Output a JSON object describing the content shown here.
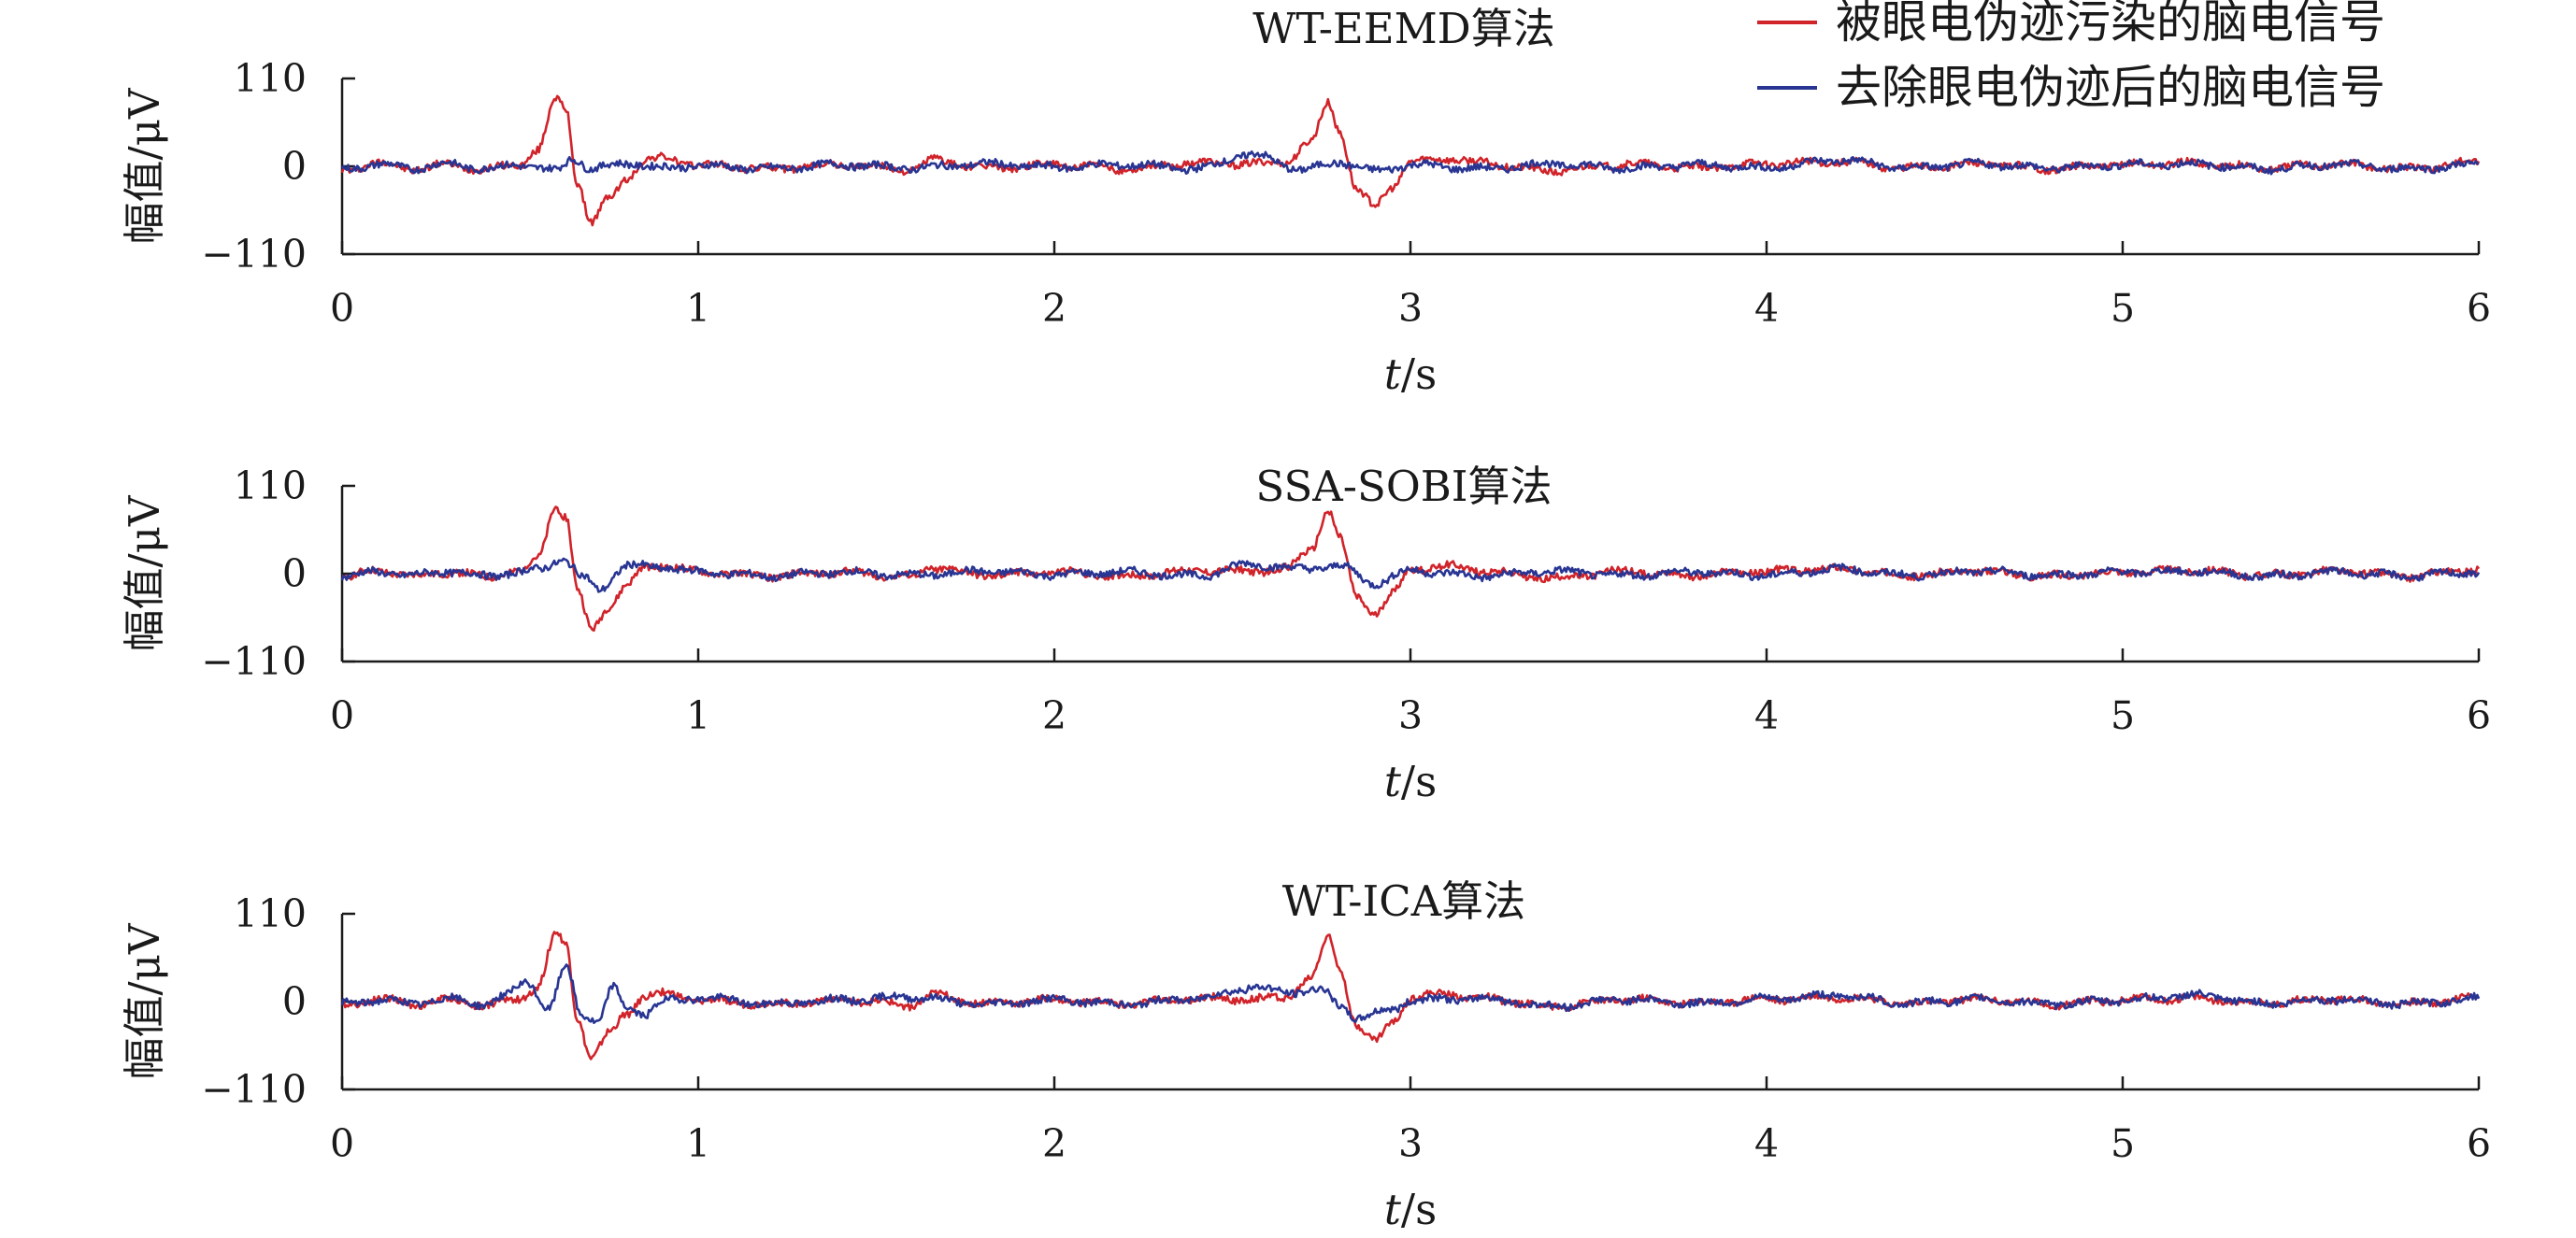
{
  "chart_data": [
    {
      "type": "line",
      "title": "WT-EEMD算法",
      "ylabel": "幅值/μV",
      "xlabel_italic": "t",
      "xlabel_unit": "/s",
      "xlim": [
        0,
        6
      ],
      "ylim": [
        -110,
        110
      ],
      "xticks": [
        "0",
        "1",
        "2",
        "3",
        "4",
        "5",
        "6"
      ],
      "yticks": [
        "110",
        "0",
        "−110"
      ],
      "series": [
        {
          "name": "被眼电伪迹污染的脑电信号",
          "color": "#d1232a",
          "x": [
            0,
            0.1,
            0.2,
            0.3,
            0.4,
            0.5,
            0.55,
            0.6,
            0.63,
            0.66,
            0.7,
            0.75,
            0.8,
            0.85,
            0.9,
            1.0,
            1.2,
            1.4,
            1.6,
            1.66,
            1.8,
            2.0,
            2.2,
            2.4,
            2.56,
            2.65,
            2.72,
            2.77,
            2.8,
            2.85,
            2.9,
            2.95,
            3.0,
            3.1,
            3.2,
            3.4,
            3.6,
            3.8,
            4.0,
            4.2,
            4.4,
            4.6,
            4.8,
            5.0,
            5.2,
            5.4,
            5.6,
            5.8,
            6.0
          ],
          "values": [
            -5,
            4,
            -3,
            2,
            -4,
            3,
            20,
            85,
            70,
            -20,
            -70,
            -40,
            -15,
            8,
            10,
            2,
            -3,
            2,
            -4,
            8,
            -2,
            2,
            -3,
            4,
            3,
            6,
            30,
            80,
            45,
            -30,
            -50,
            -25,
            5,
            10,
            4,
            -6,
            3,
            -2,
            3,
            6,
            -2,
            3,
            -3,
            2,
            4,
            -2,
            3,
            -3,
            5
          ]
        },
        {
          "name": "去除眼电伪迹后的脑电信号",
          "color": "#283593",
          "x": [
            0,
            0.1,
            0.2,
            0.3,
            0.4,
            0.5,
            0.6,
            0.65,
            0.7,
            0.8,
            0.9,
            1.0,
            1.2,
            1.4,
            1.6,
            1.8,
            2.0,
            2.2,
            2.4,
            2.55,
            2.7,
            2.8,
            2.9,
            3.0,
            3.2,
            3.4,
            3.6,
            3.8,
            4.0,
            4.2,
            4.4,
            4.6,
            4.8,
            5.0,
            5.2,
            5.4,
            5.6,
            5.8,
            6.0
          ],
          "values": [
            -3,
            2,
            -2,
            3,
            -3,
            2,
            -5,
            10,
            -3,
            4,
            -2,
            1,
            -3,
            2,
            -2,
            3,
            -1,
            2,
            -3,
            15,
            -4,
            5,
            -6,
            2,
            -3,
            3,
            -2,
            2,
            -2,
            8,
            -2,
            3,
            -2,
            2,
            3,
            -3,
            2,
            -3,
            2
          ]
        }
      ]
    },
    {
      "type": "line",
      "title": "SSA-SOBI算法",
      "ylabel": "幅值/μV",
      "xlabel_italic": "t",
      "xlabel_unit": "/s",
      "xlim": [
        0,
        6
      ],
      "ylim": [
        -110,
        110
      ],
      "xticks": [
        "0",
        "1",
        "2",
        "3",
        "4",
        "5",
        "6"
      ],
      "yticks": [
        "110",
        "0",
        "−110"
      ],
      "series": [
        {
          "name": "被眼电伪迹污染的脑电信号",
          "color": "#d1232a",
          "x": [
            0,
            0.1,
            0.2,
            0.3,
            0.4,
            0.5,
            0.55,
            0.6,
            0.63,
            0.66,
            0.7,
            0.75,
            0.8,
            0.85,
            0.9,
            1.0,
            1.2,
            1.4,
            1.6,
            1.66,
            1.8,
            2.0,
            2.2,
            2.4,
            2.56,
            2.65,
            2.72,
            2.77,
            2.8,
            2.85,
            2.9,
            2.95,
            3.0,
            3.1,
            3.2,
            3.4,
            3.6,
            3.8,
            4.0,
            4.2,
            4.4,
            4.6,
            4.8,
            5.0,
            5.2,
            5.4,
            5.6,
            5.8,
            6.0
          ],
          "values": [
            -5,
            4,
            -3,
            2,
            -4,
            3,
            20,
            85,
            70,
            -20,
            -70,
            -40,
            -15,
            8,
            10,
            2,
            -3,
            2,
            -4,
            8,
            -2,
            2,
            -3,
            4,
            3,
            6,
            30,
            80,
            45,
            -30,
            -50,
            -25,
            5,
            10,
            4,
            -6,
            3,
            -2,
            3,
            6,
            -2,
            3,
            -3,
            2,
            4,
            -2,
            3,
            -3,
            5
          ]
        },
        {
          "name": "去除眼电伪迹后的脑电信号",
          "color": "#283593",
          "x": [
            0,
            0.1,
            0.2,
            0.3,
            0.4,
            0.5,
            0.55,
            0.62,
            0.68,
            0.72,
            0.8,
            0.9,
            1.0,
            1.2,
            1.4,
            1.6,
            1.8,
            2.0,
            2.2,
            2.4,
            2.55,
            2.7,
            2.8,
            2.9,
            3.0,
            3.2,
            3.4,
            3.6,
            3.8,
            4.0,
            4.2,
            4.4,
            4.6,
            4.8,
            5.0,
            5.2,
            5.4,
            5.6,
            5.8,
            6.0
          ],
          "values": [
            -3,
            2,
            -2,
            3,
            -3,
            2,
            5,
            18,
            -5,
            -20,
            10,
            8,
            2,
            -3,
            2,
            -2,
            3,
            -1,
            2,
            -3,
            12,
            6,
            10,
            -12,
            4,
            -3,
            3,
            -2,
            2,
            -2,
            6,
            -2,
            3,
            -2,
            2,
            3,
            -3,
            2,
            -3,
            2
          ]
        }
      ]
    },
    {
      "type": "line",
      "title": "WT-ICA算法",
      "ylabel": "幅值/μV",
      "xlabel_italic": "t",
      "xlabel_unit": "/s",
      "xlim": [
        0,
        6
      ],
      "ylim": [
        -110,
        110
      ],
      "xticks": [
        "0",
        "1",
        "2",
        "3",
        "4",
        "5",
        "6"
      ],
      "yticks": [
        "110",
        "0",
        "−110"
      ],
      "series": [
        {
          "name": "被眼电伪迹污染的脑电信号",
          "color": "#d1232a",
          "x": [
            0,
            0.1,
            0.2,
            0.3,
            0.4,
            0.5,
            0.55,
            0.6,
            0.63,
            0.66,
            0.7,
            0.75,
            0.8,
            0.85,
            0.9,
            1.0,
            1.2,
            1.4,
            1.6,
            1.66,
            1.8,
            2.0,
            2.2,
            2.4,
            2.56,
            2.65,
            2.72,
            2.77,
            2.8,
            2.85,
            2.9,
            2.95,
            3.0,
            3.1,
            3.2,
            3.4,
            3.6,
            3.8,
            4.0,
            4.2,
            4.4,
            4.6,
            4.8,
            5.0,
            5.2,
            5.4,
            5.6,
            5.8,
            6.0
          ],
          "values": [
            -5,
            4,
            -3,
            2,
            -4,
            3,
            20,
            85,
            70,
            -20,
            -70,
            -40,
            -15,
            8,
            10,
            2,
            -3,
            2,
            -4,
            8,
            -2,
            2,
            -3,
            4,
            3,
            6,
            30,
            80,
            45,
            -30,
            -50,
            -25,
            5,
            10,
            4,
            -6,
            3,
            -2,
            3,
            6,
            -2,
            3,
            -3,
            2,
            4,
            -2,
            3,
            -3,
            5
          ]
        },
        {
          "name": "去除眼电伪迹后的脑电信号",
          "color": "#283593",
          "x": [
            0,
            0.1,
            0.2,
            0.3,
            0.4,
            0.45,
            0.52,
            0.58,
            0.63,
            0.67,
            0.72,
            0.76,
            0.8,
            0.85,
            0.9,
            1.0,
            1.2,
            1.4,
            1.6,
            1.8,
            2.0,
            2.2,
            2.4,
            2.56,
            2.65,
            2.75,
            2.8,
            2.85,
            2.95,
            3.0,
            3.2,
            3.4,
            3.6,
            3.8,
            4.0,
            4.2,
            4.4,
            4.6,
            4.8,
            5.0,
            5.2,
            5.4,
            5.6,
            5.8,
            6.0
          ],
          "values": [
            -3,
            2,
            -2,
            3,
            -3,
            5,
            25,
            -10,
            45,
            -15,
            -25,
            18,
            -8,
            -15,
            0,
            5,
            -3,
            2,
            6,
            -3,
            2,
            -3,
            4,
            18,
            12,
            15,
            -5,
            -20,
            -10,
            2,
            4,
            -6,
            3,
            -2,
            3,
            8,
            -2,
            3,
            -3,
            2,
            8,
            -2,
            3,
            -3,
            4
          ]
        }
      ]
    }
  ]
}
